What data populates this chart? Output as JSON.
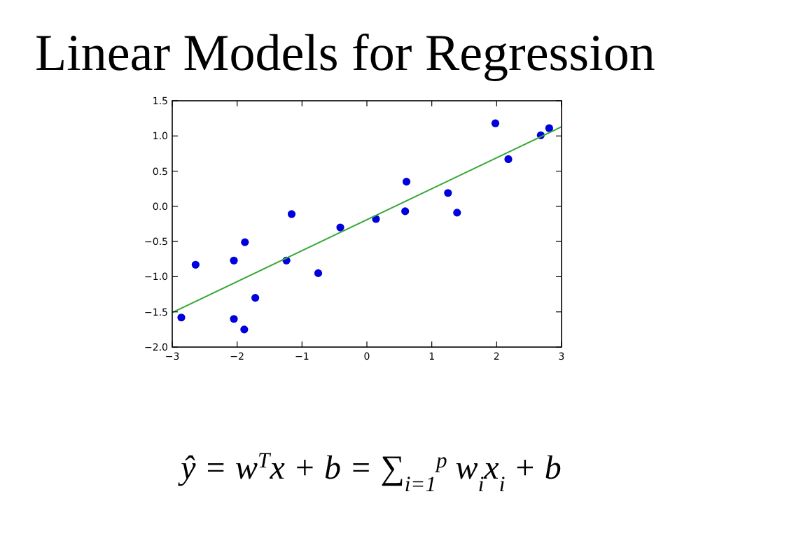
{
  "chart_data": {
    "type": "scatter",
    "title": "Linear Models for Regression",
    "xlim": [
      -3,
      3
    ],
    "xticks": [
      {
        "value": -3,
        "label": "−3"
      },
      {
        "value": -2,
        "label": "−2"
      },
      {
        "value": -1,
        "label": "−1"
      },
      0,
      1,
      2,
      3
    ],
    "ylim": [
      -2,
      1.5
    ],
    "yticks": [
      {
        "value": -2,
        "label": "−2.0"
      },
      {
        "value": -1.5,
        "label": "−1.5"
      },
      {
        "value": -1,
        "label": "−1.0"
      },
      {
        "value": -0.5,
        "label": "−0.5"
      },
      {
        "value": 0,
        "label": "0.0"
      },
      {
        "value": 0.5,
        "label": "0.5"
      },
      {
        "value": 1,
        "label": "1.0"
      },
      {
        "value": 1.5,
        "label": "1.5"
      }
    ],
    "grid": false,
    "series": [
      {
        "marker": "circle",
        "color": "#0000dd",
        "x": [
          -2.86,
          -2.64,
          -2.05,
          -1.88,
          -2.05,
          -1.89,
          -1.72,
          -1.24,
          -1.16,
          -0.75,
          -0.41,
          0.14,
          0.61,
          0.59,
          1.25,
          1.39,
          1.98,
          2.18,
          2.68,
          2.81
        ],
        "values": [
          -1.58,
          -0.83,
          -0.77,
          -0.51,
          -1.6,
          -1.75,
          -1.3,
          -0.77,
          -0.11,
          -0.95,
          -0.3,
          -0.18,
          0.35,
          -0.07,
          0.19,
          -0.09,
          1.18,
          0.67,
          1.01,
          1.11
        ]
      },
      {
        "type": "line",
        "color": "#3aa83a",
        "x": [
          -3,
          3
        ],
        "values": [
          -1.51,
          1.13
        ]
      }
    ],
    "annotations": [
      "ŷ = w$^{T}$x + b = ∑$_{i=1}$$^{p}$ w$_{i}$x$_{i}$ + b"
    ]
  }
}
